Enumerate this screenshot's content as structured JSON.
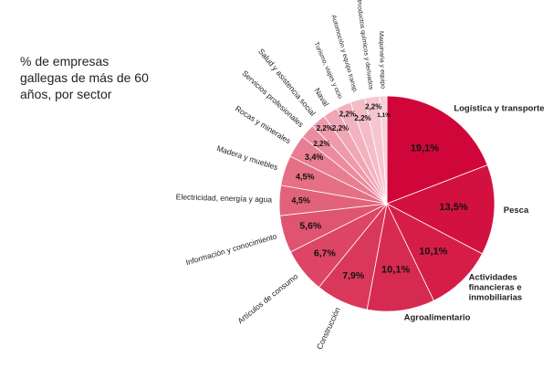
{
  "chart_data": {
    "type": "pie",
    "title": "% de empresas gallegas de más de 60 años, por sector",
    "slices": [
      {
        "label": "Logística y transporte",
        "value": 19.1,
        "value_label": "19,1%",
        "color": "#d0063a",
        "bold_label": true
      },
      {
        "label": "Pesca",
        "value": 13.5,
        "value_label": "13,5%",
        "color": "#d31140",
        "bold_label": true
      },
      {
        "label": "Actividades financieras e inmobiliarias",
        "value": 10.1,
        "value_label": "10,1%",
        "color": "#d51d48",
        "bold_label": true
      },
      {
        "label": "Agroalimentario",
        "value": 10.1,
        "value_label": "10,1%",
        "color": "#d72a51",
        "bold_label": true
      },
      {
        "label": "Construcción",
        "value": 7.9,
        "value_label": "7,9%",
        "color": "#da385b",
        "bold_label": false
      },
      {
        "label": "Artículos de consumo",
        "value": 6.7,
        "value_label": "6,7%",
        "color": "#dc4565",
        "bold_label": false
      },
      {
        "label": "Información y conocimiento",
        "value": 5.6,
        "value_label": "5,6%",
        "color": "#df5470",
        "bold_label": false
      },
      {
        "label": "Electricidad, energía y agua",
        "value": 4.5,
        "value_label": "4,5%",
        "color": "#e2627b",
        "bold_label": false
      },
      {
        "label": "Madera y muebles",
        "value": 4.5,
        "value_label": "4,5%",
        "color": "#e57086",
        "bold_label": false
      },
      {
        "label": "Rocas y minerales",
        "value": 3.4,
        "value_label": "3,4%",
        "color": "#e87e92",
        "bold_label": false
      },
      {
        "label": "Servicios profesionales",
        "value": 2.2,
        "value_label": "2,2%",
        "color": "#eb8c9e",
        "bold_label": false
      },
      {
        "label": "Salud y asistencia social",
        "value": 2.2,
        "value_label": "2,2%",
        "color": "#ee9aaa",
        "bold_label": false
      },
      {
        "label": "Naval",
        "value": 2.2,
        "value_label": "2,2%",
        "color": "#f0a6b4",
        "bold_label": false
      },
      {
        "label": "Turismo, viajes y ocio",
        "value": 2.2,
        "value_label": "2,2%",
        "color": "#f2b2be",
        "bold_label": false
      },
      {
        "label": "Automoción y equipo transp.",
        "value": 2.2,
        "value_label": "2,2%",
        "color": "#f4bcc7",
        "bold_label": false
      },
      {
        "label": "Productos químicos y derivados",
        "value": 2.2,
        "value_label": "2,2%",
        "color": "#f6c6d0",
        "bold_label": false
      },
      {
        "label": "Maquinaria y equipo",
        "value": 1.1,
        "value_label": "1,1%",
        "color": "#f8d0d8",
        "bold_label": false
      }
    ]
  }
}
